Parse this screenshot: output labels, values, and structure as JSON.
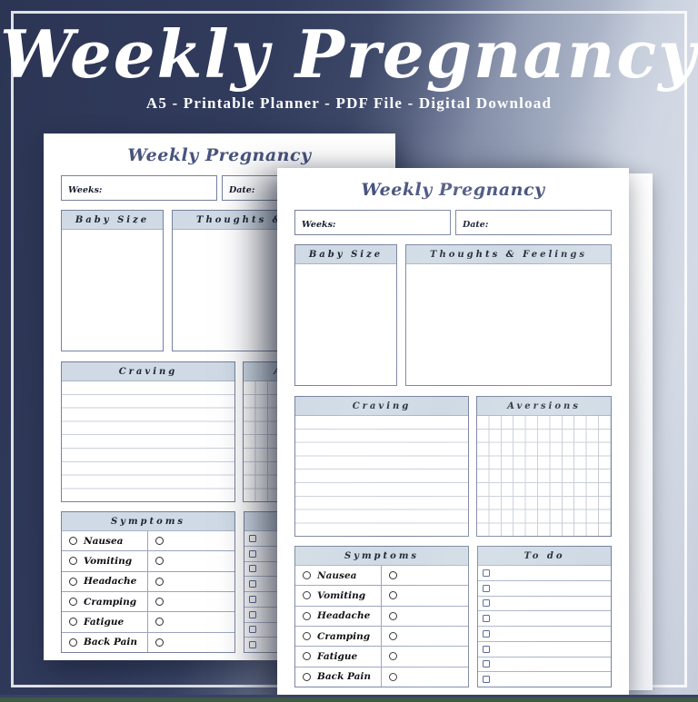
{
  "hero": {
    "title": "Weekly Pregnancy",
    "subtitle": "A5 - Printable Planner - PDF File - Digital Download"
  },
  "planner": {
    "title": "Weekly Pregnancy",
    "fields": {
      "weeks_label": "Weeks:",
      "date_label": "Date:"
    },
    "sections": {
      "baby_size": "Baby Size",
      "thoughts_feelings": "Thoughts & Feelings",
      "craving": "Craving",
      "aversions": "Aversions",
      "symptoms": "Symptoms",
      "todo": "To do"
    },
    "symptoms": [
      "Nausea",
      "Vomiting",
      "Headache",
      "Cramping",
      "Fatigue",
      "Back Pain"
    ],
    "structure": {
      "craving_lines": 9,
      "aversions_grid_cols": 11,
      "aversions_grid_rows": 9,
      "todo_rows": 8,
      "symptom_rows": 6
    }
  },
  "colors": {
    "background_dark_navy": "#2e3757",
    "background_light_blue": "#ccd4e1",
    "frame_white": "#ffffff",
    "page_heading_navy": "#48547e",
    "section_header_bg": "#cfdae4",
    "box_border": "#76819f",
    "rule_line": "#c9cfda",
    "bottom_bar_green": "#3d5a47",
    "bottom_line_navy": "#39425f"
  }
}
